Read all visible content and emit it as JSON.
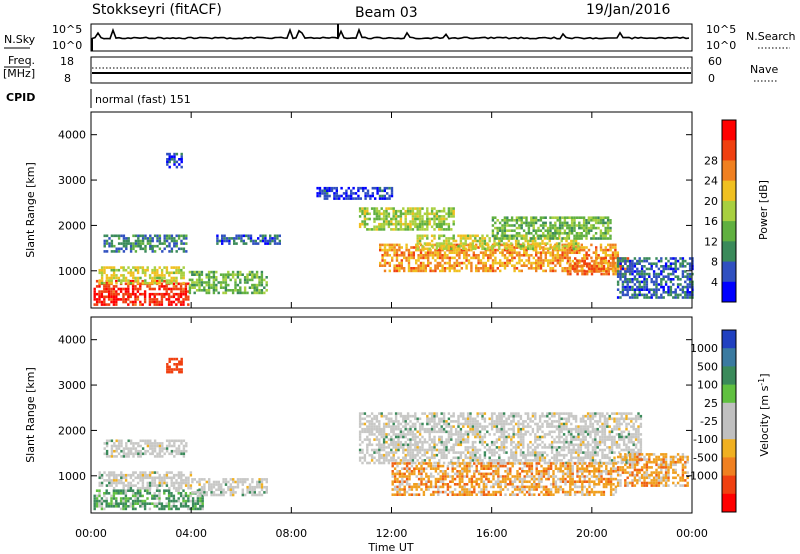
{
  "header": {
    "radar": "Stokkseyri (fitACF)",
    "beam": "Beam 03",
    "date": "19/Jan/2016"
  },
  "side_labels": {
    "nsky": "N.Sky",
    "nsearch": "N.Search",
    "freq": "Freq.",
    "freq_unit": "[MHz]",
    "nave": "Nave",
    "cpid": "CPID"
  },
  "noise_axis": {
    "left_top": "10^5",
    "left_bottom": "10^0",
    "right_top": "10^5",
    "right_bottom": "10^0"
  },
  "freq_axis": {
    "left_top": "18",
    "left_bottom": "8",
    "right_top": "60",
    "right_bottom": "0"
  },
  "cpid_text": "normal (fast) 151",
  "colors": {
    "power_scale": [
      "#0000ff",
      "#3050c0",
      "#3a8a5a",
      "#60b040",
      "#a8d040",
      "#f0c020",
      "#f08020",
      "#f04010",
      "#ff0000"
    ],
    "velocity_scale": [
      "#ff0000",
      "#f04010",
      "#f08020",
      "#f0b020",
      "#c0c0c0",
      "#c0c0c0",
      "#60c040",
      "#3a8a5a",
      "#3a7aa0",
      "#2040c0"
    ]
  },
  "chart_data": [
    {
      "type": "heatmap",
      "title": "",
      "ylabel": "Slant Range [km]",
      "xlabel": "",
      "ylim": [
        180,
        4500
      ],
      "yticks": [
        "1000",
        "2000",
        "3000",
        "4000"
      ],
      "xticks": [
        "00:00",
        "04:00",
        "08:00",
        "12:00",
        "16:00",
        "20:00",
        "00:00"
      ],
      "colorbar": {
        "label": "Power [dB]",
        "ticks": [
          "4",
          "8",
          "12",
          "16",
          "20",
          "24",
          "28"
        ]
      },
      "regions": [
        {
          "t0": 0.1,
          "t1": 3.9,
          "r0": 280,
          "r1": 800,
          "level": 28
        },
        {
          "t0": 0.3,
          "t1": 3.7,
          "r0": 750,
          "r1": 1100,
          "level": 18
        },
        {
          "t0": 3.9,
          "t1": 7.0,
          "r0": 500,
          "r1": 1000,
          "level": 14
        },
        {
          "t0": 0.5,
          "t1": 3.8,
          "r0": 1400,
          "r1": 1800,
          "level": 10
        },
        {
          "t0": 10.7,
          "t1": 14.5,
          "r0": 1900,
          "r1": 2400,
          "level": 16
        },
        {
          "t0": 11.5,
          "t1": 21.0,
          "r0": 1000,
          "r1": 1600,
          "level": 22
        },
        {
          "t0": 13.0,
          "t1": 19.5,
          "r0": 1500,
          "r1": 1800,
          "level": 18
        },
        {
          "t0": 16.0,
          "t1": 20.7,
          "r0": 1700,
          "r1": 2200,
          "level": 14
        },
        {
          "t0": 19.0,
          "t1": 21.5,
          "r0": 900,
          "r1": 1300,
          "level": 24
        },
        {
          "t0": 21.0,
          "t1": 24.0,
          "r0": 400,
          "r1": 1300,
          "level": 8
        },
        {
          "t0": 5.0,
          "t1": 7.5,
          "r0": 1600,
          "r1": 1800,
          "level": 8
        },
        {
          "t0": 3.0,
          "t1": 3.6,
          "r0": 3300,
          "r1": 3600,
          "level": 6
        },
        {
          "t0": 9.0,
          "t1": 12.0,
          "r0": 2600,
          "r1": 2850,
          "level": 6
        }
      ]
    },
    {
      "type": "heatmap",
      "title": "",
      "ylabel": "Slant Range [km]",
      "xlabel": "Time UT",
      "ylim": [
        180,
        4500
      ],
      "yticks": [
        "1000",
        "2000",
        "3000",
        "4000"
      ],
      "xticks": [
        "00:00",
        "04:00",
        "08:00",
        "12:00",
        "16:00",
        "20:00",
        "00:00"
      ],
      "colorbar": {
        "label": "Velocity [m s^-1]",
        "ticks": [
          "1000",
          "500",
          "100",
          "25",
          "-25",
          "-100",
          "-500",
          "-1000"
        ]
      },
      "regions": [
        {
          "t0": 0.1,
          "t1": 4.5,
          "r0": 280,
          "r1": 700,
          "level": "green"
        },
        {
          "t0": 0.3,
          "t1": 4.0,
          "r0": 700,
          "r1": 1100,
          "level": "grey"
        },
        {
          "t0": 4.0,
          "t1": 7.0,
          "r0": 600,
          "r1": 950,
          "level": "grey"
        },
        {
          "t0": 10.7,
          "t1": 22.0,
          "r0": 1300,
          "r1": 2400,
          "level": "grey"
        },
        {
          "t0": 12.0,
          "t1": 21.0,
          "r0": 600,
          "r1": 1300,
          "level": "orange"
        },
        {
          "t0": 21.0,
          "t1": 23.8,
          "r0": 800,
          "r1": 1500,
          "level": "orange"
        },
        {
          "t0": 3.0,
          "t1": 3.6,
          "r0": 3300,
          "r1": 3600,
          "level": "red"
        },
        {
          "t0": 0.5,
          "t1": 3.8,
          "r0": 1400,
          "r1": 1800,
          "level": "grey"
        }
      ]
    }
  ],
  "time_axis_label": "Time UT"
}
